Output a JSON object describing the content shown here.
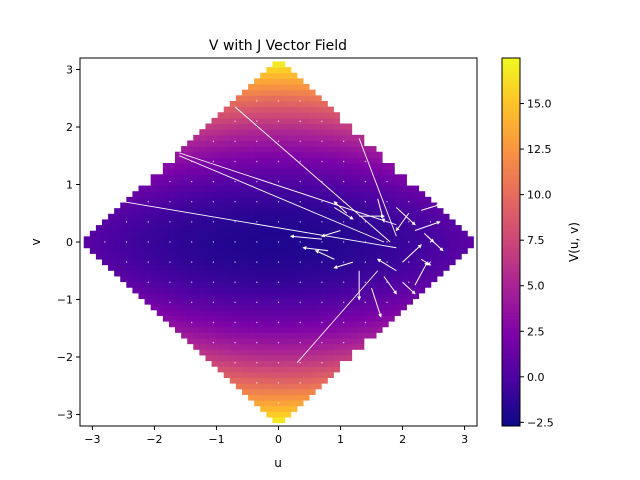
{
  "chart_data": {
    "type": "heatmap",
    "title": "V with J Vector Field",
    "xlabel": "u",
    "ylabel": "v",
    "colorbar_label": "V(u, v)",
    "colormap": "plasma",
    "xlim": [
      -3.2,
      3.2
    ],
    "ylim": [
      -3.2,
      3.2
    ],
    "domain": "|u| + |v| <= 3.14",
    "xticks": [
      -3,
      -2,
      -1,
      0,
      1,
      2,
      3
    ],
    "yticks": [
      -3,
      -2,
      -1,
      0,
      1,
      2,
      3
    ],
    "color_range": [
      -2.7,
      17.5
    ],
    "colorbar_ticks": [
      -2.5,
      0.0,
      2.5,
      5.0,
      7.5,
      10.0,
      12.5,
      15.0
    ],
    "approx_values": [
      {
        "u": 0.0,
        "v": 0.0,
        "V": -2.0
      },
      {
        "u": 1.6,
        "v": 0.0,
        "V": -1.5
      },
      {
        "u": -3.0,
        "v": 0.0,
        "V": 5.0
      },
      {
        "u": 3.0,
        "v": 0.0,
        "V": -1.0
      },
      {
        "u": 0.0,
        "v": 3.0,
        "V": 17.0
      },
      {
        "u": 0.0,
        "v": -3.0,
        "V": 17.0
      }
    ],
    "vector_field": {
      "name": "J",
      "color": "#ffffff",
      "long_segments": [
        {
          "from": [
            -0.7,
            2.35
          ],
          "to": [
            1.8,
            0.0
          ]
        },
        {
          "from": [
            -1.6,
            1.55
          ],
          "to": [
            1.9,
            0.3
          ]
        },
        {
          "from": [
            -1.6,
            1.5
          ],
          "to": [
            1.7,
            0.0
          ]
        },
        {
          "from": [
            -2.5,
            0.7
          ],
          "to": [
            1.9,
            -0.1
          ]
        },
        {
          "from": [
            0.3,
            -2.1
          ],
          "to": [
            1.6,
            -0.5
          ]
        },
        {
          "from": [
            1.3,
            1.8
          ],
          "to": [
            1.9,
            0.1
          ]
        }
      ],
      "arrows": [
        {
          "u": 0.9,
          "v": 0.6,
          "du": 0.3,
          "dv": -0.2
        },
        {
          "u": 1.1,
          "v": 0.5,
          "du": -0.2,
          "dv": 0.2
        },
        {
          "u": 1.3,
          "v": 0.45,
          "du": 0.4,
          "dv": 0.0
        },
        {
          "u": 0.7,
          "v": 0.05,
          "du": -0.5,
          "dv": 0.05
        },
        {
          "u": 1.0,
          "v": 0.2,
          "du": -0.3,
          "dv": -0.1
        },
        {
          "u": 0.8,
          "v": -0.15,
          "du": -0.4,
          "dv": 0.05
        },
        {
          "u": 0.9,
          "v": -0.3,
          "du": -0.3,
          "dv": 0.15
        },
        {
          "u": 1.2,
          "v": -0.35,
          "du": -0.3,
          "dv": -0.1
        },
        {
          "u": 1.3,
          "v": -0.5,
          "du": 0.0,
          "dv": -0.5
        },
        {
          "u": 1.6,
          "v": 0.75,
          "du": 0.1,
          "dv": -0.4
        },
        {
          "u": 1.9,
          "v": 0.6,
          "du": 0.3,
          "dv": -0.3
        },
        {
          "u": 2.1,
          "v": 0.5,
          "du": -0.2,
          "dv": -0.3
        },
        {
          "u": 2.3,
          "v": 0.55,
          "du": 0.3,
          "dv": 0.1
        },
        {
          "u": 2.2,
          "v": 0.2,
          "du": 0.4,
          "dv": 0.15
        },
        {
          "u": 2.35,
          "v": 0.15,
          "du": 0.3,
          "dv": -0.3
        },
        {
          "u": 2.0,
          "v": -0.35,
          "du": 0.3,
          "dv": 0.3
        },
        {
          "u": 1.9,
          "v": -0.5,
          "du": -0.3,
          "dv": 0.2
        },
        {
          "u": 2.0,
          "v": -0.7,
          "du": 0.2,
          "dv": -0.2
        },
        {
          "u": 2.2,
          "v": -0.75,
          "du": 0.2,
          "dv": 0.4
        },
        {
          "u": 2.3,
          "v": -0.3,
          "du": 0.15,
          "dv": -0.1
        },
        {
          "u": 1.7,
          "v": -0.6,
          "du": 0.2,
          "dv": -0.3
        },
        {
          "u": 1.5,
          "v": -0.8,
          "du": 0.15,
          "dv": -0.5
        },
        {
          "u": 2.4,
          "v": 0.1,
          "du": 0.1,
          "dv": -0.1
        }
      ]
    }
  }
}
